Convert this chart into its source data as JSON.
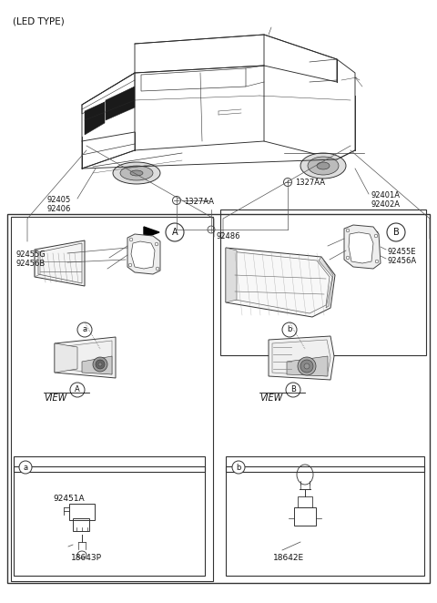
{
  "bg_color": "#ffffff",
  "text_color": "#111111",
  "line_color": "#333333",
  "labels": {
    "led_type": "(LED TYPE)",
    "92405": "92405",
    "92406": "92406",
    "1327AA_left": "1327AA",
    "1327AA_top": "1327AA",
    "92401A": "92401A",
    "92402A": "92402A",
    "92486": "92486",
    "92455G": "92455G",
    "92456B": "92456B",
    "92455E": "92455E",
    "92456A": "92456A",
    "view_A": "VIEW",
    "view_B": "VIEW",
    "92451A": "92451A",
    "18643P": "18643P",
    "18642E": "18642E",
    "A": "A",
    "B": "B",
    "a": "a",
    "b": "b"
  }
}
